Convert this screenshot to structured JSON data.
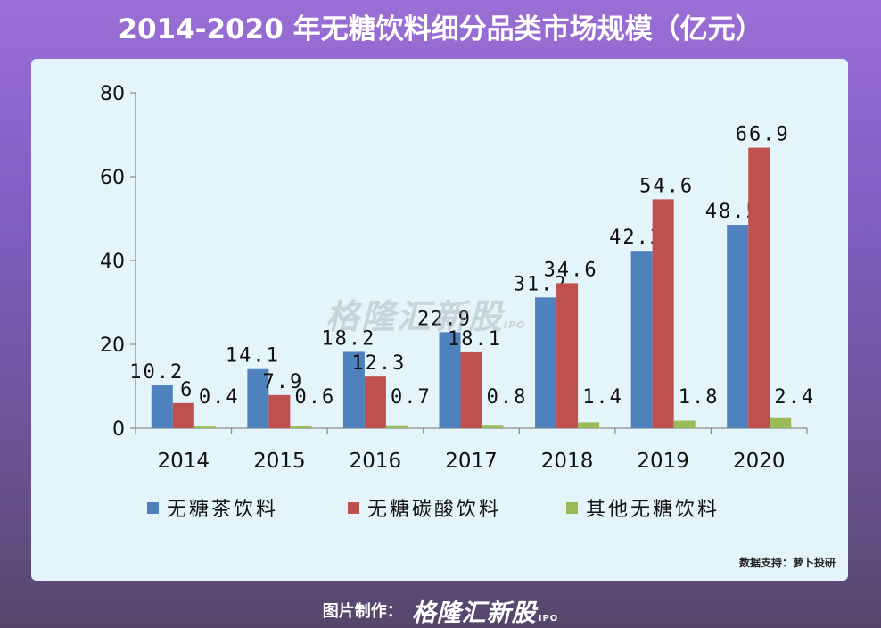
{
  "title": "2014-2020 年无糖饮料细分品类市场规模（亿元）",
  "source_note": "数据支持：萝卜投研",
  "watermark": {
    "text": "格隆汇新股",
    "sub": "IPO"
  },
  "footer": {
    "credit_label": "图片制作：",
    "brand": "格隆汇新股",
    "brand_sub": "IPO"
  },
  "chart_data": {
    "type": "bar",
    "title": "",
    "xlabel": "",
    "ylabel": "",
    "categories": [
      "2014",
      "2015",
      "2016",
      "2017",
      "2018",
      "2019",
      "2020"
    ],
    "ylim": [
      0,
      80
    ],
    "yticks": [
      0,
      20,
      40,
      60,
      80
    ],
    "grid": false,
    "legend_position": "bottom",
    "series": [
      {
        "name": "无糖茶饮料",
        "color": "#4f81bd",
        "values": [
          10.2,
          14.1,
          18.2,
          22.9,
          31.2,
          42.3,
          48.5
        ],
        "labels": [
          "10.2",
          "14.1",
          "18.2",
          "22.9",
          "31.2",
          "42.3",
          "48.5"
        ]
      },
      {
        "name": "无糖碳酸饮料",
        "color": "#c0504d",
        "values": [
          6,
          7.9,
          12.3,
          18.1,
          34.6,
          54.6,
          66.9
        ],
        "labels": [
          "6",
          "7.9",
          "12.3",
          "18.1",
          "34.6",
          "54.6",
          "66.9"
        ]
      },
      {
        "name": "其他无糖饮料",
        "color": "#9bbb59",
        "values": [
          0.4,
          0.6,
          0.7,
          0.8,
          1.4,
          1.8,
          2.4
        ],
        "labels": [
          "0.4",
          "0.6",
          "0.7",
          "0.8",
          "1.4",
          "1.8",
          "2.4"
        ]
      }
    ]
  }
}
